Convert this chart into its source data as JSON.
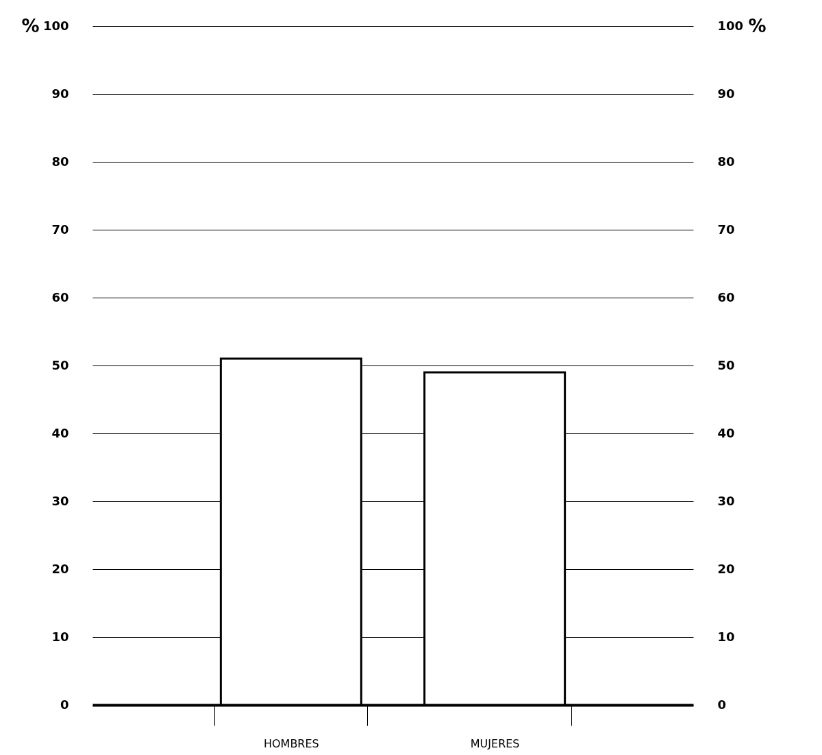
{
  "chart_data": {
    "type": "bar",
    "ylabel": "%",
    "y2label": "%",
    "categories": [
      "HOMBRES",
      "MUJERES"
    ],
    "values": [
      51,
      49
    ],
    "color": "#ffffff",
    "ylim": [
      0,
      100
    ],
    "yticks": [
      0,
      10,
      20,
      30,
      40,
      50,
      60,
      70,
      80,
      90,
      100
    ],
    "y2lim": [
      0,
      100
    ],
    "y2ticks": [
      0,
      10,
      20,
      30,
      40,
      50,
      60,
      70,
      80,
      90,
      100
    ],
    "grid": "y"
  }
}
